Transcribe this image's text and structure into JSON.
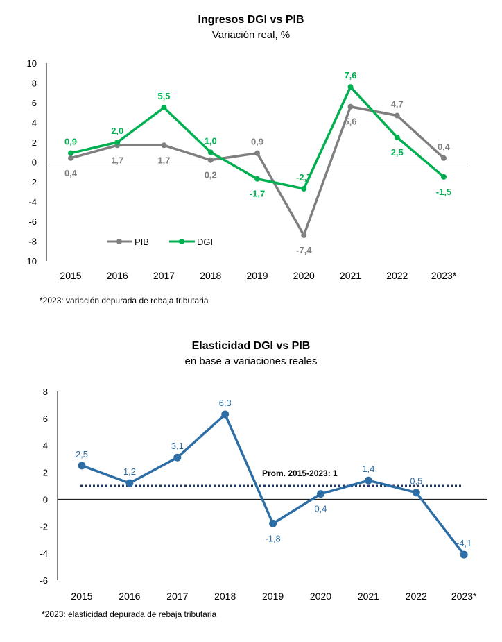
{
  "chart_data": [
    {
      "type": "line",
      "title": "Ingresos DGI vs PIB",
      "subtitle": "Variación real, %",
      "categories": [
        "2015",
        "2016",
        "2017",
        "2018",
        "2019",
        "2020",
        "2021",
        "2022",
        "2023*"
      ],
      "ylim": [
        -10,
        10
      ],
      "yticks": [
        "10",
        "8",
        "6",
        "4",
        "2",
        "0",
        "-2",
        "-4",
        "-6",
        "-8",
        "-10"
      ],
      "series": [
        {
          "name": "PIB",
          "color": "#7f7f7f",
          "values": [
            0.4,
            1.7,
            1.7,
            0.2,
            0.9,
            -7.4,
            5.6,
            4.7,
            0.4
          ],
          "labels": [
            "0,4",
            "1,7",
            "1,7",
            "0,2",
            "0,9",
            "-7,4",
            "5,6",
            "4,7",
            "0,4"
          ]
        },
        {
          "name": "DGI",
          "color": "#00b050",
          "values": [
            0.9,
            2.0,
            5.5,
            1.0,
            -1.7,
            -2.7,
            7.6,
            2.5,
            -1.5
          ],
          "labels": [
            "0,9",
            "2,0",
            "5,5",
            "1,0",
            "-1,7",
            "-2,7",
            "7,6",
            "2,5",
            "-1,5"
          ]
        }
      ],
      "legend": "bottom-left",
      "note": "*2023: variación depurada de rebaja tributaria"
    },
    {
      "type": "line",
      "title": "Elasticidad DGI vs PIB",
      "subtitle": "en base a variaciones reales",
      "categories": [
        "2015",
        "2016",
        "2017",
        "2018",
        "2019",
        "2020",
        "2021",
        "2022",
        "2023*"
      ],
      "ylim": [
        -6,
        8
      ],
      "yticks": [
        "8",
        "6",
        "4",
        "2",
        "0",
        "-2",
        "-4",
        "-6"
      ],
      "series": [
        {
          "color": "#2e6ea6",
          "values": [
            2.5,
            1.2,
            3.1,
            6.3,
            -1.8,
            0.4,
            1.4,
            0.5,
            -4.1
          ],
          "labels": [
            "2,5",
            "1,2",
            "3,1",
            "6,3",
            "-1,8",
            "0,4",
            "1,4",
            "0,5",
            "-4,1"
          ]
        }
      ],
      "average": {
        "value": 1,
        "label": "Prom. 2015-2023:  1",
        "color": "#1f3864"
      },
      "note": "*2023: elasticidad depurada de rebaja tributaria"
    }
  ]
}
